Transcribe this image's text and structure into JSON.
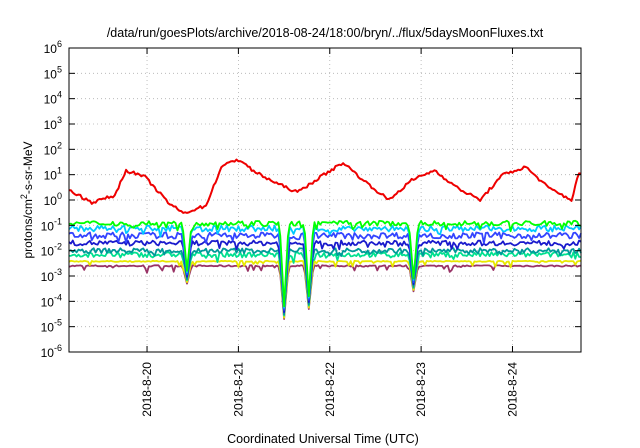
{
  "chart_data": {
    "type": "line",
    "title": "/data/run/goesPlots/archive/2018-08-24/18:00/bryn/../flux/5daysMoonFluxes.txt",
    "xlabel": "Coordinated Universal Time (UTC)",
    "ylabel": {
      "pre": "protons/cm",
      "sup": "2",
      "post": "-s-sr-MeV"
    },
    "y_scale": "log",
    "ylim": [
      1e-06,
      1000000.0
    ],
    "y_ticks": [
      {
        "exp": "-6",
        "value": 1e-06
      },
      {
        "exp": "-5",
        "value": 1e-05
      },
      {
        "exp": "-4",
        "value": 0.0001
      },
      {
        "exp": "-3",
        "value": 0.001
      },
      {
        "exp": "-2",
        "value": 0.01
      },
      {
        "exp": "-1",
        "value": 0.1
      },
      {
        "exp": "0",
        "value": 1
      },
      {
        "exp": "1",
        "value": 10
      },
      {
        "exp": "2",
        "value": 100
      },
      {
        "exp": "3",
        "value": 1000
      },
      {
        "exp": "4",
        "value": 10000
      },
      {
        "exp": "5",
        "value": 100000
      },
      {
        "exp": "6",
        "value": 1000000
      }
    ],
    "xlim": [
      "2018-08-19 03:30",
      "2018-08-24 18:00"
    ],
    "x_ticks": [
      "2018-8-20",
      "2018-8-21",
      "2018-8-22",
      "2018-8-23",
      "2018-8-24"
    ],
    "grid": true,
    "legend": "none",
    "series": [
      {
        "color": "#ee0000",
        "time_hours": [
          0,
          6,
          12,
          15,
          20,
          26,
          30,
          36,
          40,
          44,
          46,
          48,
          54,
          60,
          66,
          72,
          78,
          84,
          90,
          96,
          102,
          108,
          114,
          120,
          126,
          132,
          134
        ],
        "values": [
          2.5,
          0.8,
          1.5,
          15,
          8,
          0.8,
          0.3,
          0.6,
          20,
          40,
          30,
          15,
          5,
          2,
          8,
          30,
          5,
          1,
          6,
          15,
          3,
          1,
          10,
          20,
          3,
          1,
          12
        ]
      },
      {
        "color": "#00ff00",
        "base": 0.12,
        "noise": 0.1
      },
      {
        "color": "#00c8ff",
        "base": 0.075,
        "noise": 0.12
      },
      {
        "color": "#3344ff",
        "base": 0.04,
        "noise": 0.12
      },
      {
        "color": "#1a1acc",
        "base": 0.02,
        "noise": 0.1
      },
      {
        "color": "#009999",
        "base": 0.01,
        "noise": 0.1
      },
      {
        "color": "#00e090",
        "base": 0.007,
        "noise": 0.1
      },
      {
        "color": "#e8e800",
        "base": 0.0038,
        "noise": 0.02
      },
      {
        "color": "#993366",
        "base": 0.0025,
        "noise": 0.03
      }
    ],
    "dips": [
      {
        "time_hours": 31,
        "min": 0.0005
      },
      {
        "time_hours": 56.5,
        "min": 2e-05
      },
      {
        "time_hours": 63,
        "min": 5e-05
      },
      {
        "time_hours": 90.5,
        "min": 0.00025
      }
    ]
  }
}
